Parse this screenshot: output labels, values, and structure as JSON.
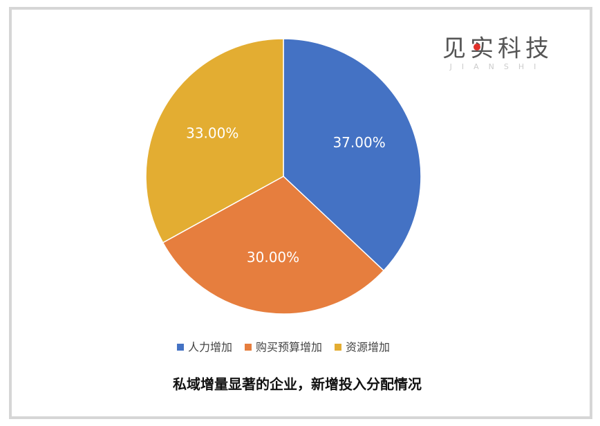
{
  "chart_data": {
    "type": "pie",
    "title": "私域增量显著的企业，新增投入分配情况",
    "categories": [
      "人力增加",
      "购买预算增加",
      "资源增加"
    ],
    "values": [
      37,
      30,
      33
    ],
    "value_labels": [
      "37.00%",
      "30.00%",
      "33.00%"
    ],
    "colors": [
      "#4472c4",
      "#e67e3e",
      "#e3ad32"
    ],
    "legend": "bottom"
  },
  "logo": {
    "name": "见实科技",
    "subtitle": "JIANSHI"
  }
}
